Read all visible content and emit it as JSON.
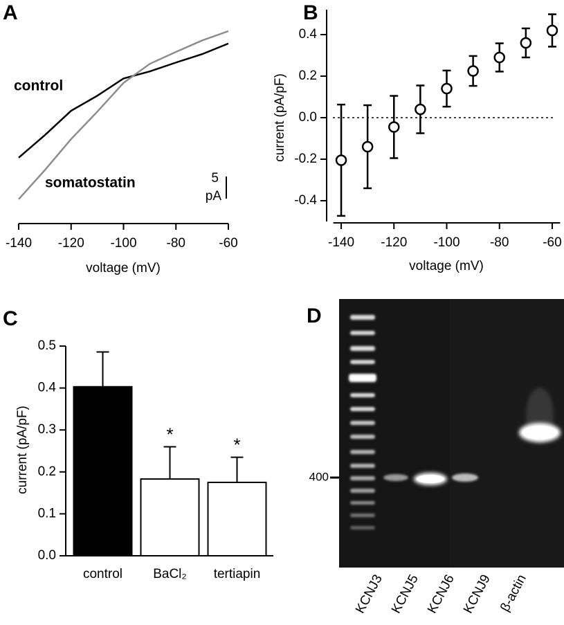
{
  "chart_data": [
    {
      "type": "line",
      "panel_label": "A",
      "x_label": "voltage (mV)",
      "x": [
        -140,
        -130,
        -120,
        -110,
        -100,
        -90,
        -80,
        -70,
        -60
      ],
      "series": [
        {
          "name": "control",
          "color": "#000000",
          "values": [
            9.4,
            14.5,
            20.0,
            23.4,
            27.3,
            28.9,
            30.9,
            32.8,
            35.2
          ]
        },
        {
          "name": "somatostatin",
          "color": "#8c8c8c",
          "values": [
            0,
            6.6,
            13.6,
            19.8,
            26.3,
            30.6,
            33.3,
            35.9,
            38.0
          ]
        }
      ],
      "scale_bar": {
        "value": 5,
        "unit": "pA"
      },
      "xlim": [
        -140,
        -60
      ],
      "xticks": [
        -140,
        -120,
        -100,
        -80,
        -60
      ],
      "ylim": [
        -5.5,
        38
      ]
    },
    {
      "type": "errorbar",
      "panel_label": "B",
      "x_label": "voltage (mV)",
      "y_label": "current (pA/pF)",
      "x": [
        -140,
        -130,
        -120,
        -110,
        -100,
        -90,
        -80,
        -70,
        -60
      ],
      "values": [
        -0.205,
        -0.14,
        -0.045,
        0.04,
        0.14,
        0.225,
        0.29,
        0.36,
        0.42
      ],
      "errors": [
        0.268,
        0.2,
        0.15,
        0.115,
        0.087,
        0.072,
        0.068,
        0.07,
        0.078
      ],
      "reference_line": 0,
      "xlim": [
        -143,
        -57
      ],
      "xticks": [
        -140,
        -120,
        -100,
        -80,
        -60
      ],
      "ylim": [
        -0.5,
        0.52
      ],
      "yticks": [
        -0.4,
        -0.2,
        {
          "value": 0,
          "label": "0.0"
        },
        0.2,
        0.4
      ]
    },
    {
      "type": "bar",
      "panel_label": "C",
      "y_label": "current (pA/pF)",
      "categories": [
        "control",
        "BaCl₂",
        "tertiapin"
      ],
      "values": [
        0.403,
        0.183,
        0.175
      ],
      "errors": [
        0.083,
        0.077,
        0.06
      ],
      "colors": [
        "#000000",
        "#ffffff",
        "#ffffff"
      ],
      "annotations": [
        {
          "category": "BaCl₂",
          "text": "*"
        },
        {
          "category": "tertiapin",
          "text": "*"
        }
      ],
      "ylim": [
        0,
        0.5
      ],
      "yticks": [
        {
          "value": 0,
          "label": "0.0"
        },
        0.1,
        0.2,
        0.3,
        0.4,
        0.5
      ]
    }
  ],
  "gel": {
    "panel_label": "D",
    "marker": "400",
    "lanes": [
      "KCNJ3",
      "KCNJ5",
      "KCNJ6",
      "KCNJ9",
      "β-actin"
    ]
  }
}
